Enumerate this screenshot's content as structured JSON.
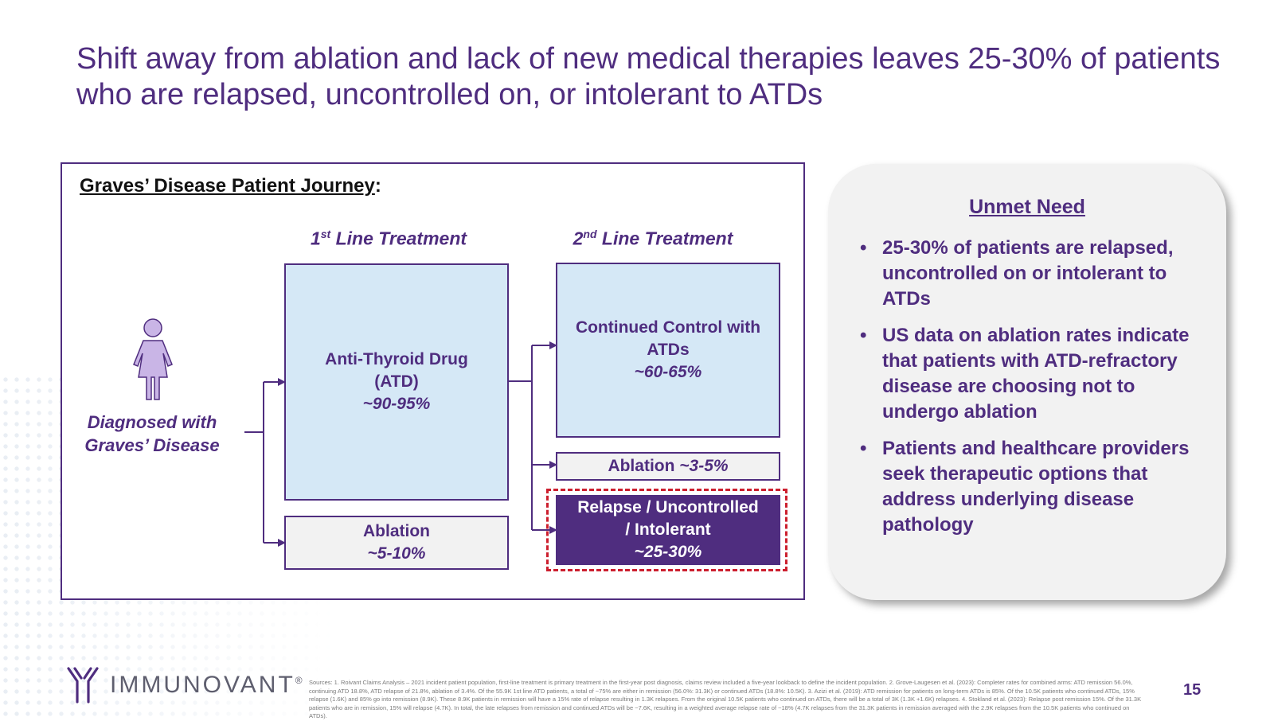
{
  "slide": {
    "title": "Shift away from ablation and lack of new medical therapies leaves 25-30% of patients who are relapsed, uncontrolled on, or intolerant to ATDs",
    "page_number": "15"
  },
  "journey": {
    "heading": "Graves’ Disease Patient Journey",
    "heading_suffix": ":",
    "col1_prefix": "1",
    "col1_sup": "st",
    "col1_suffix": " Line Treatment",
    "col2_prefix": "2",
    "col2_sup": "nd",
    "col2_suffix": " Line Treatment",
    "diagnosed_line1": "Diagnosed with",
    "diagnosed_line2": "Graves’ Disease",
    "atd": {
      "line1": "Anti-Thyroid Drug",
      "line2": "(ATD)",
      "pct": "~90-95%"
    },
    "ablation1": {
      "label": "Ablation",
      "pct": "~5-10%"
    },
    "continued": {
      "line1": "Continued Control with",
      "line2": "ATDs",
      "pct": "~60-65%"
    },
    "ablation2": {
      "label": "Ablation ",
      "pct": "~3-5%"
    },
    "relapse": {
      "line1": "Relapse / Uncontrolled",
      "line2": "/ Intolerant",
      "pct": "~25-30%"
    }
  },
  "unmet": {
    "title": "Unmet Need",
    "bullets": [
      "25-30% of patients are relapsed, uncontrolled on or intolerant to ATDs",
      "US data on ablation rates indicate that patients with ATD-refractory disease are choosing not to undergo ablation",
      "Patients and healthcare providers seek therapeutic options that address underlying disease pathology"
    ]
  },
  "footer": {
    "logo_text": "IMMUNOVANT",
    "logo_mark": "®",
    "sources": "Sources: 1. Roivant Claims Analysis – 2021 incident patient population, first-line treatment is primary treatment in the first-year post diagnosis, claims review included a five-year lookback to define the incident population. 2. Grove-Laugesen et al. (2023): Completer rates for combined arms: ATD remission 56.0%, continuing ATD 18.8%, ATD relapse of 21.8%, ablation of 3.4%. Of the 55.9K 1st line ATD patients, a total of ~75% are either in remission (56.0%: 31.3K) or continued ATDs (18.8%: 10.5K). 3. Azizi et al. (2019): ATD remission for patients on long-term ATDs is 85%. Of the 10.5K patients who continued ATDs, 15% relapse (1.6K) and 85% go into remission (8.9K). These 8.9K patients in remission will have a 15% rate of relapse resulting in 1.3K relapses. From the original 10.5K patients who continued on ATDs, there will be a total of 3K (1.3K +1.6K) relapses. 4. Stokland et al. (2023): Relapse post remission 15%. Of the 31.3K patients who are in remission, 15% will relapse (4.7K). In total, the late relapses from remission and continued ATDs will be ~7.6K, resulting in a weighted average relapse rate of ~18% (4.7K relapses from the 31.3K patients in remission averaged with the 2.9K relapses from the 10.5K patients who continued on ATDs)."
  },
  "colors": {
    "brand_purple": "#4f2d7f",
    "box_blue": "#d5e8f6",
    "box_grey": "#f2f2f2",
    "dash_red": "#cc1f2e"
  },
  "icons": {
    "person": "person-female-icon",
    "logo": "immunovant-logo-icon"
  }
}
